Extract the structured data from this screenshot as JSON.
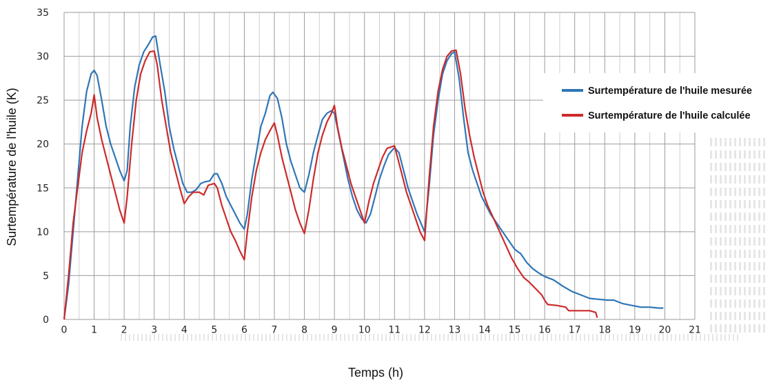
{
  "chart_data": {
    "type": "line",
    "title": "",
    "xlabel": "Temps (h)",
    "ylabel": "Surtempérature de l'huile (K)",
    "xlim": [
      0,
      21
    ],
    "ylim": [
      0,
      35
    ],
    "xticks": [
      "0",
      "1",
      "2",
      "3",
      "4",
      "5",
      "6",
      "7",
      "8",
      "9",
      "10",
      "11",
      "12",
      "13",
      "14",
      "15",
      "16",
      "17",
      "18",
      "19",
      "20",
      "21"
    ],
    "yticks": [
      "0",
      "5",
      "10",
      "15",
      "20",
      "25",
      "30",
      "35"
    ],
    "grid": true,
    "legend_position": "top-right",
    "series": [
      {
        "name": "Surtempérature de l'huile mesurée",
        "color": "#2e75b6",
        "points": [
          [
            0,
            0
          ],
          [
            0.15,
            4
          ],
          [
            0.3,
            10
          ],
          [
            0.45,
            16
          ],
          [
            0.6,
            22
          ],
          [
            0.75,
            26
          ],
          [
            0.9,
            28
          ],
          [
            1.0,
            28.4
          ],
          [
            1.1,
            27.8
          ],
          [
            1.25,
            25
          ],
          [
            1.4,
            22
          ],
          [
            1.55,
            20
          ],
          [
            1.7,
            18.5
          ],
          [
            1.85,
            17
          ],
          [
            2.0,
            15.8
          ],
          [
            2.1,
            17
          ],
          [
            2.2,
            22
          ],
          [
            2.35,
            26.5
          ],
          [
            2.5,
            29
          ],
          [
            2.65,
            30.5
          ],
          [
            2.8,
            31.3
          ],
          [
            2.95,
            32.2
          ],
          [
            3.05,
            32.3
          ],
          [
            3.2,
            29
          ],
          [
            3.35,
            26
          ],
          [
            3.5,
            22
          ],
          [
            3.65,
            19.5
          ],
          [
            3.8,
            17.5
          ],
          [
            3.95,
            15.5
          ],
          [
            4.1,
            14.5
          ],
          [
            4.25,
            14.5
          ],
          [
            4.4,
            14.8
          ],
          [
            4.55,
            15.5
          ],
          [
            4.7,
            15.7
          ],
          [
            4.85,
            15.8
          ],
          [
            5.0,
            16.6
          ],
          [
            5.1,
            16.6
          ],
          [
            5.25,
            15.5
          ],
          [
            5.4,
            14
          ],
          [
            5.55,
            13
          ],
          [
            5.7,
            12
          ],
          [
            5.85,
            11
          ],
          [
            6.0,
            10.3
          ],
          [
            6.1,
            12
          ],
          [
            6.25,
            16
          ],
          [
            6.4,
            19
          ],
          [
            6.55,
            22
          ],
          [
            6.7,
            23.5
          ],
          [
            6.85,
            25.5
          ],
          [
            6.95,
            25.9
          ],
          [
            7.1,
            25.2
          ],
          [
            7.25,
            23
          ],
          [
            7.4,
            20
          ],
          [
            7.55,
            18
          ],
          [
            7.7,
            16.5
          ],
          [
            7.85,
            15
          ],
          [
            8.0,
            14.5
          ],
          [
            8.15,
            16.5
          ],
          [
            8.3,
            19
          ],
          [
            8.45,
            21
          ],
          [
            8.6,
            22.8
          ],
          [
            8.75,
            23.5
          ],
          [
            8.9,
            23.8
          ],
          [
            9.0,
            23.5
          ],
          [
            9.15,
            21
          ],
          [
            9.3,
            18.5
          ],
          [
            9.45,
            16
          ],
          [
            9.6,
            14
          ],
          [
            9.75,
            12.5
          ],
          [
            9.9,
            11.5
          ],
          [
            10.05,
            11
          ],
          [
            10.2,
            12
          ],
          [
            10.35,
            14
          ],
          [
            10.5,
            16
          ],
          [
            10.65,
            17.5
          ],
          [
            10.8,
            18.8
          ],
          [
            11.0,
            19.6
          ],
          [
            11.15,
            19
          ],
          [
            11.3,
            17
          ],
          [
            11.45,
            15
          ],
          [
            11.6,
            13.5
          ],
          [
            11.75,
            12
          ],
          [
            11.9,
            10.8
          ],
          [
            12.0,
            10
          ],
          [
            12.15,
            15
          ],
          [
            12.3,
            21
          ],
          [
            12.45,
            25
          ],
          [
            12.6,
            28
          ],
          [
            12.75,
            29.5
          ],
          [
            12.9,
            30.3
          ],
          [
            13.0,
            30.5
          ],
          [
            13.15,
            27.5
          ],
          [
            13.3,
            23
          ],
          [
            13.45,
            19
          ],
          [
            13.6,
            17
          ],
          [
            13.75,
            15.5
          ],
          [
            13.9,
            14
          ],
          [
            14.05,
            13
          ],
          [
            14.2,
            12
          ],
          [
            14.4,
            11
          ],
          [
            14.6,
            10
          ],
          [
            14.8,
            9
          ],
          [
            15.0,
            8
          ],
          [
            15.2,
            7.5
          ],
          [
            15.4,
            6.5
          ],
          [
            15.6,
            5.8
          ],
          [
            15.8,
            5.3
          ],
          [
            16.0,
            4.9
          ],
          [
            16.3,
            4.5
          ],
          [
            16.6,
            3.8
          ],
          [
            16.9,
            3.2
          ],
          [
            17.2,
            2.8
          ],
          [
            17.5,
            2.4
          ],
          [
            17.8,
            2.3
          ],
          [
            18.1,
            2.2
          ],
          [
            18.3,
            2.2
          ],
          [
            18.6,
            1.8
          ],
          [
            18.9,
            1.6
          ],
          [
            19.2,
            1.4
          ],
          [
            19.5,
            1.4
          ],
          [
            19.8,
            1.3
          ],
          [
            19.95,
            1.3
          ]
        ]
      },
      {
        "name": "Surtempérature de l'huile calculée",
        "color": "#cc2a2a",
        "points": [
          [
            0,
            0
          ],
          [
            0.15,
            5
          ],
          [
            0.3,
            11
          ],
          [
            0.45,
            15
          ],
          [
            0.6,
            19
          ],
          [
            0.75,
            21.5
          ],
          [
            0.9,
            23.5
          ],
          [
            1.0,
            25.6
          ],
          [
            1.1,
            23
          ],
          [
            1.25,
            20.5
          ],
          [
            1.4,
            18.5
          ],
          [
            1.55,
            16.5
          ],
          [
            1.7,
            14.5
          ],
          [
            1.85,
            12.5
          ],
          [
            2.0,
            11
          ],
          [
            2.1,
            14
          ],
          [
            2.25,
            20
          ],
          [
            2.4,
            25
          ],
          [
            2.55,
            28
          ],
          [
            2.7,
            29.5
          ],
          [
            2.85,
            30.5
          ],
          [
            3.0,
            30.6
          ],
          [
            3.1,
            29
          ],
          [
            3.25,
            25
          ],
          [
            3.4,
            22
          ],
          [
            3.55,
            19
          ],
          [
            3.7,
            17
          ],
          [
            3.85,
            15
          ],
          [
            4.0,
            13.2
          ],
          [
            4.15,
            14
          ],
          [
            4.3,
            14.5
          ],
          [
            4.5,
            14.5
          ],
          [
            4.65,
            14.2
          ],
          [
            4.8,
            15.3
          ],
          [
            5.0,
            15.5
          ],
          [
            5.1,
            15
          ],
          [
            5.25,
            13
          ],
          [
            5.4,
            11.5
          ],
          [
            5.55,
            10
          ],
          [
            5.7,
            9
          ],
          [
            5.85,
            7.8
          ],
          [
            6.0,
            6.8
          ],
          [
            6.1,
            10
          ],
          [
            6.25,
            14
          ],
          [
            6.4,
            17
          ],
          [
            6.55,
            19
          ],
          [
            6.7,
            20.5
          ],
          [
            6.85,
            21.5
          ],
          [
            7.0,
            22.4
          ],
          [
            7.1,
            21
          ],
          [
            7.25,
            18.5
          ],
          [
            7.4,
            16.5
          ],
          [
            7.55,
            14.5
          ],
          [
            7.7,
            12.5
          ],
          [
            7.85,
            11
          ],
          [
            8.0,
            9.8
          ],
          [
            8.15,
            12.5
          ],
          [
            8.3,
            16
          ],
          [
            8.45,
            19
          ],
          [
            8.6,
            21
          ],
          [
            8.75,
            22.5
          ],
          [
            8.9,
            23.5
          ],
          [
            9.0,
            24.4
          ],
          [
            9.1,
            22
          ],
          [
            9.25,
            19.5
          ],
          [
            9.4,
            17.5
          ],
          [
            9.55,
            15.5
          ],
          [
            9.7,
            14
          ],
          [
            9.85,
            12.5
          ],
          [
            10.0,
            11
          ],
          [
            10.15,
            13.5
          ],
          [
            10.3,
            15.5
          ],
          [
            10.45,
            17
          ],
          [
            10.6,
            18.5
          ],
          [
            10.75,
            19.5
          ],
          [
            11.0,
            19.8
          ],
          [
            11.1,
            18.5
          ],
          [
            11.25,
            16.5
          ],
          [
            11.4,
            14.5
          ],
          [
            11.55,
            13
          ],
          [
            11.7,
            11.5
          ],
          [
            11.85,
            10
          ],
          [
            12.0,
            9
          ],
          [
            12.15,
            16
          ],
          [
            12.3,
            22
          ],
          [
            12.45,
            26
          ],
          [
            12.6,
            28.5
          ],
          [
            12.75,
            30
          ],
          [
            12.9,
            30.6
          ],
          [
            13.05,
            30.7
          ],
          [
            13.2,
            28
          ],
          [
            13.35,
            24
          ],
          [
            13.5,
            21
          ],
          [
            13.65,
            18.5
          ],
          [
            13.8,
            16.5
          ],
          [
            13.95,
            14.5
          ],
          [
            14.1,
            13
          ],
          [
            14.3,
            11.5
          ],
          [
            14.5,
            10
          ],
          [
            14.7,
            8.5
          ],
          [
            14.9,
            7
          ],
          [
            15.1,
            5.8
          ],
          [
            15.3,
            4.8
          ],
          [
            15.5,
            4.2
          ],
          [
            15.7,
            3.5
          ],
          [
            15.9,
            2.8
          ],
          [
            16.0,
            2.2
          ],
          [
            16.1,
            1.7
          ],
          [
            16.4,
            1.6
          ],
          [
            16.7,
            1.4
          ],
          [
            16.8,
            1.0
          ],
          [
            17.2,
            1.0
          ],
          [
            17.5,
            1.0
          ],
          [
            17.7,
            0.8
          ],
          [
            17.75,
            0.2
          ]
        ]
      }
    ]
  }
}
